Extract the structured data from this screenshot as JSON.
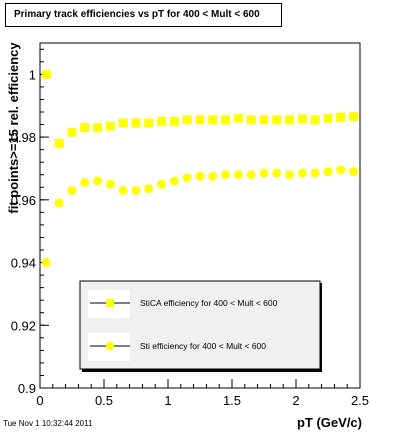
{
  "chart_data": {
    "type": "scatter",
    "title": "Primary track efficiencies vs pT for 400 < Mult < 600",
    "xlabel": "pT (GeV/c)",
    "ylabel": "fit points>=15 rel. efficiency",
    "xlim": [
      0,
      2.5
    ],
    "ylim": [
      0.9,
      1.01
    ],
    "xticks": [
      "0",
      "0.5",
      "1",
      "1.5",
      "2",
      "2.5"
    ],
    "yticks": [
      "0.9",
      "0.92",
      "0.94",
      "0.96",
      "0.98",
      "1"
    ],
    "grid": false,
    "legend_position": "bottom-right",
    "series": [
      {
        "name": "StiCA efficiency  for 400 < Mult < 600",
        "marker": "square",
        "x": [
          0.05,
          0.15,
          0.25,
          0.35,
          0.45,
          0.55,
          0.65,
          0.75,
          0.85,
          0.95,
          1.05,
          1.15,
          1.25,
          1.35,
          1.45,
          1.55,
          1.65,
          1.75,
          1.85,
          1.95,
          2.05,
          2.15,
          2.25,
          2.35,
          2.45
        ],
        "y": [
          1.0,
          0.978,
          0.9815,
          0.983,
          0.983,
          0.9835,
          0.9845,
          0.9845,
          0.9845,
          0.985,
          0.985,
          0.9855,
          0.9855,
          0.9855,
          0.9855,
          0.986,
          0.9855,
          0.9855,
          0.9855,
          0.9855,
          0.9858,
          0.9855,
          0.986,
          0.9863,
          0.9865
        ]
      },
      {
        "name": "Sti efficiency  for 400 < Mult < 600",
        "marker": "circle",
        "x": [
          0.05,
          0.15,
          0.25,
          0.35,
          0.45,
          0.55,
          0.65,
          0.75,
          0.85,
          0.95,
          1.05,
          1.15,
          1.25,
          1.35,
          1.45,
          1.55,
          1.65,
          1.75,
          1.85,
          1.95,
          2.05,
          2.15,
          2.25,
          2.35,
          2.45
        ],
        "y": [
          0.94,
          0.959,
          0.963,
          0.9655,
          0.966,
          0.965,
          0.963,
          0.963,
          0.9635,
          0.965,
          0.966,
          0.967,
          0.9675,
          0.9675,
          0.968,
          0.968,
          0.968,
          0.9685,
          0.9685,
          0.968,
          0.9685,
          0.9685,
          0.969,
          0.9695,
          0.969
        ]
      }
    ],
    "colors": {
      "marker": "#ffff00",
      "background": "#ffffff",
      "legend_bg": "#f0f0f0"
    }
  },
  "footer": {
    "timestamp": "Tue Nov  1 10:32:44 2011"
  }
}
